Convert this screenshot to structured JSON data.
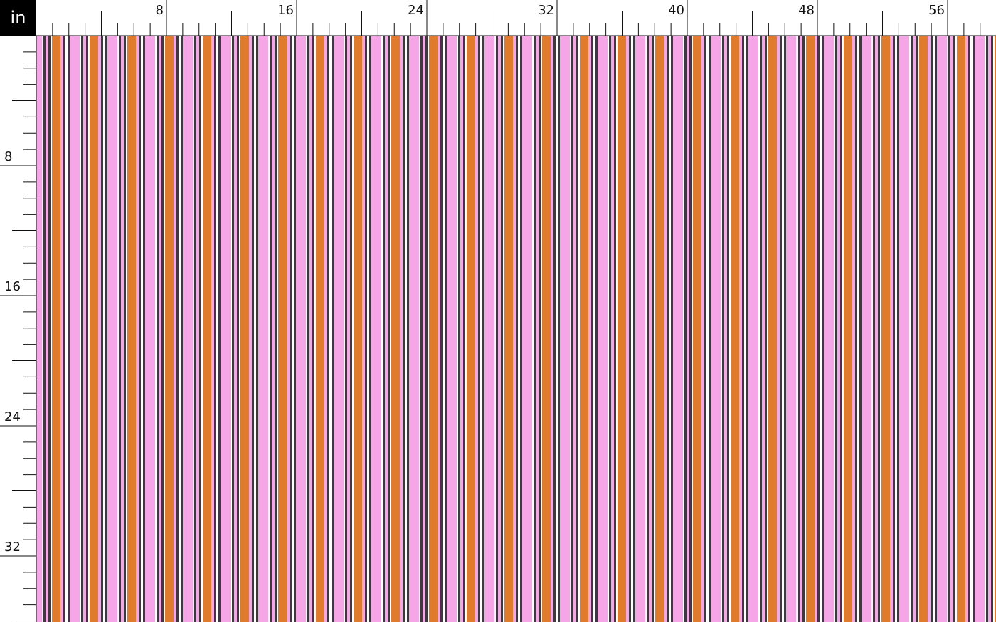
{
  "ruler": {
    "unit": "in",
    "top_labels": [
      8,
      16,
      24,
      32,
      40,
      48,
      56
    ],
    "left_labels": [
      8,
      16,
      24,
      32
    ]
  }
}
